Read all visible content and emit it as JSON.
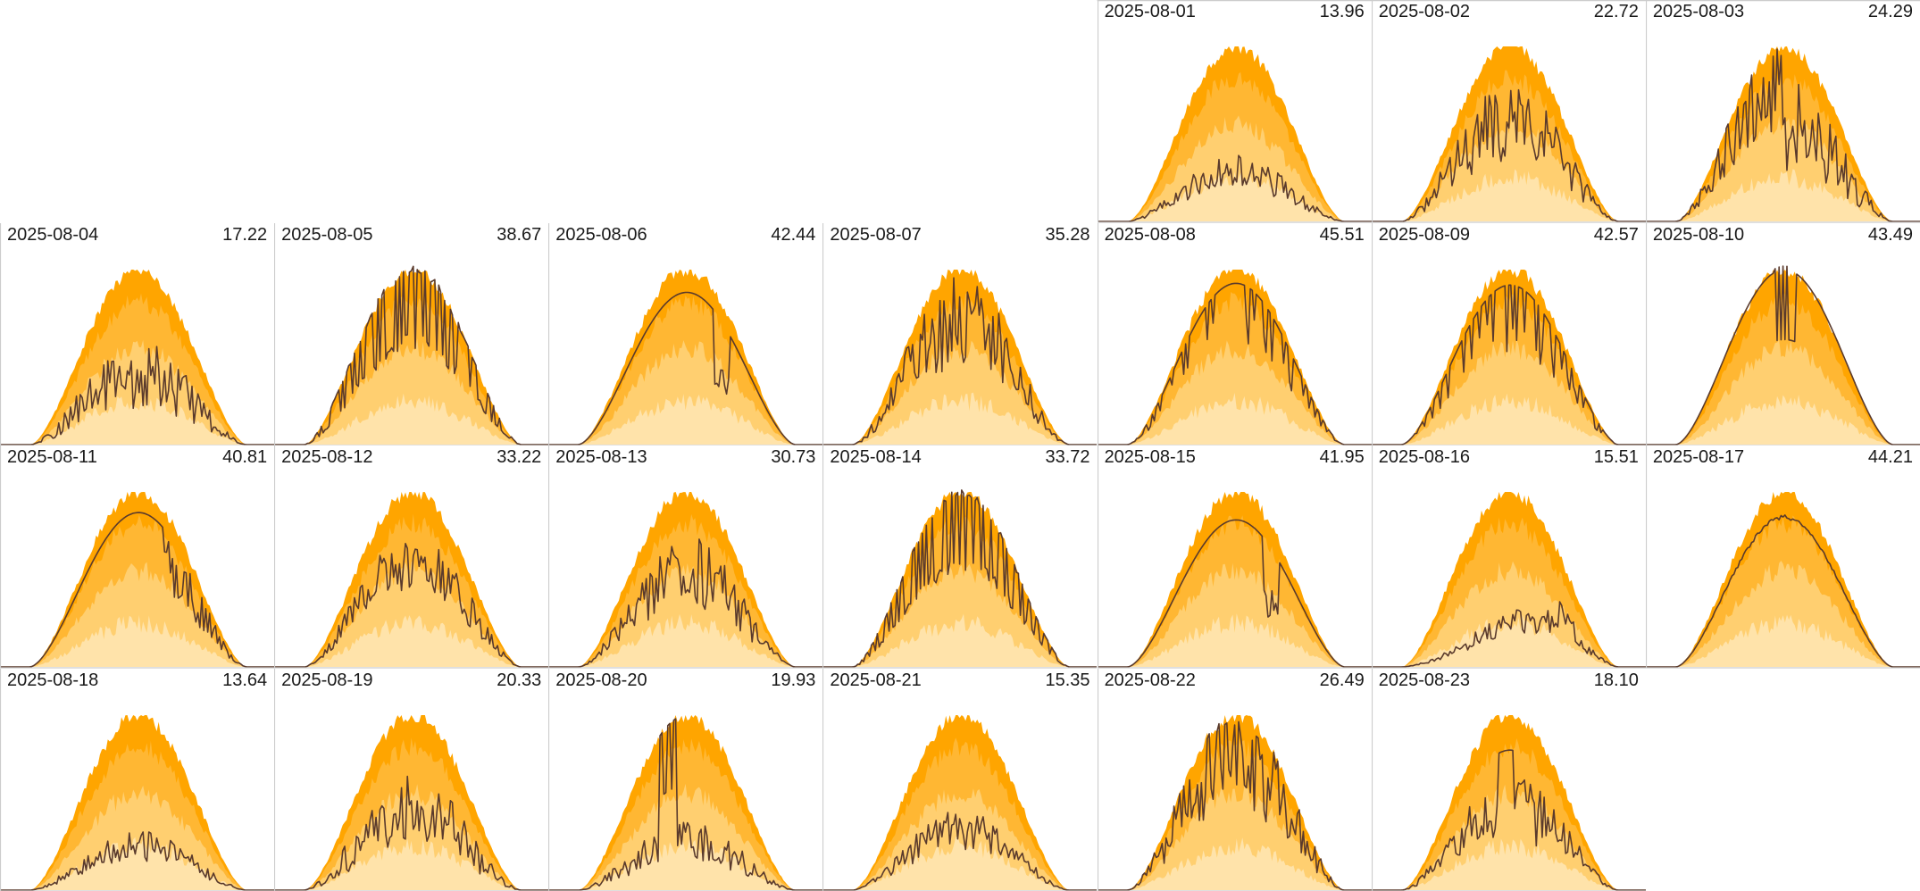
{
  "colors": {
    "band_outer": "#ffa500",
    "band_upper": "#ffb733",
    "band_mid": "#ffcf70",
    "band_lower": "#ffe3aa",
    "actual_line": "#5a3a2c",
    "grid": "#cccccc"
  },
  "chart_data": {
    "type": "area",
    "layout": "calendar-small-multiples",
    "columns": 7,
    "rows": 4,
    "first_day_column": 4,
    "title": "",
    "days": [
      {
        "date": "2025-08-01",
        "total": "13.96",
        "peak": 0.33,
        "pattern": "low"
      },
      {
        "date": "2025-08-02",
        "total": "22.72",
        "peak": 0.76,
        "pattern": "spiky"
      },
      {
        "date": "2025-08-03",
        "total": "24.29",
        "peak": 0.93,
        "pattern": "spiky-early"
      },
      {
        "date": "2025-08-04",
        "total": "17.22",
        "peak": 0.52,
        "pattern": "low-spiky"
      },
      {
        "date": "2025-08-05",
        "total": "38.67",
        "peak": 0.98,
        "pattern": "very-spiky"
      },
      {
        "date": "2025-08-06",
        "total": "42.44",
        "peak": 0.87,
        "pattern": "smooth-dip"
      },
      {
        "date": "2025-08-07",
        "total": "35.28",
        "peak": 0.92,
        "pattern": "spiky"
      },
      {
        "date": "2025-08-08",
        "total": "45.51",
        "peak": 0.97,
        "pattern": "near-full-spiky"
      },
      {
        "date": "2025-08-09",
        "total": "42.57",
        "peak": 0.96,
        "pattern": "near-full-spiky"
      },
      {
        "date": "2025-08-10",
        "total": "43.49",
        "peak": 1.0,
        "pattern": "smooth-spike"
      },
      {
        "date": "2025-08-11",
        "total": "40.81",
        "peak": 0.9,
        "pattern": "smooth-late-drop"
      },
      {
        "date": "2025-08-12",
        "total": "33.22",
        "peak": 0.78,
        "pattern": "moderate"
      },
      {
        "date": "2025-08-13",
        "total": "30.73",
        "peak": 0.75,
        "pattern": "moderate-spiky"
      },
      {
        "date": "2025-08-14",
        "total": "33.72",
        "peak": 0.97,
        "pattern": "very-spiky"
      },
      {
        "date": "2025-08-15",
        "total": "41.95",
        "peak": 0.84,
        "pattern": "smooth-dip"
      },
      {
        "date": "2025-08-16",
        "total": "15.51",
        "peak": 0.55,
        "pattern": "late-rise"
      },
      {
        "date": "2025-08-17",
        "total": "44.21",
        "peak": 0.87,
        "pattern": "smooth"
      },
      {
        "date": "2025-08-18",
        "total": "13.64",
        "peak": 0.3,
        "pattern": "low"
      },
      {
        "date": "2025-08-19",
        "total": "20.33",
        "peak": 0.58,
        "pattern": "low-spiky"
      },
      {
        "date": "2025-08-20",
        "total": "19.93",
        "peak": 1.0,
        "pattern": "spike-early"
      },
      {
        "date": "2025-08-21",
        "total": "15.35",
        "peak": 0.4,
        "pattern": "low"
      },
      {
        "date": "2025-08-22",
        "total": "26.49",
        "peak": 0.98,
        "pattern": "spiky"
      },
      {
        "date": "2025-08-23",
        "total": "18.10",
        "peak": 0.8,
        "pattern": "low-spike"
      }
    ]
  }
}
